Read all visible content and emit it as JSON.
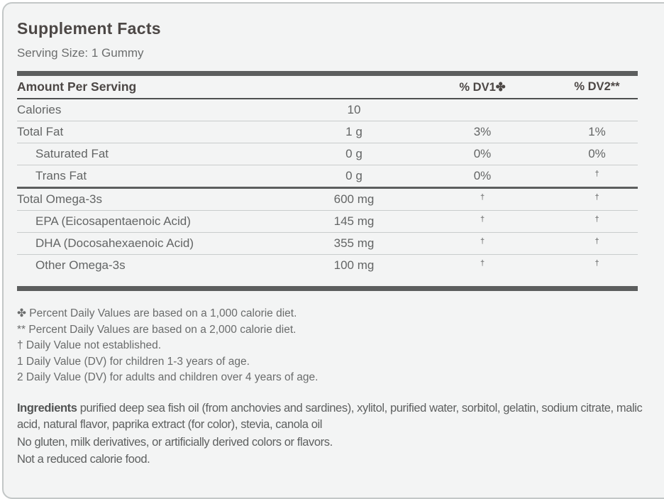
{
  "label": {
    "title": "Supplement Facts",
    "serving_size": "Serving Size: 1 Gummy"
  },
  "table": {
    "headers": {
      "amount_per_serving": "Amount Per Serving",
      "dv1": "% DV1✤",
      "dv2": "% DV2**"
    },
    "rows": [
      {
        "name": "Calories",
        "amount": "10",
        "dv1": "",
        "dv2": "",
        "indent": false,
        "sep_after": "thin"
      },
      {
        "name": "Total Fat",
        "amount": "1 g",
        "dv1": "3%",
        "dv2": "1%",
        "indent": false,
        "sep_after": "thin"
      },
      {
        "name": "Saturated Fat",
        "amount": "0 g",
        "dv1": "0%",
        "dv2": "0%",
        "indent": true,
        "sep_after": "thin"
      },
      {
        "name": "Trans Fat",
        "amount": "0 g",
        "dv1": "0%",
        "dv2": "†",
        "indent": true,
        "sep_after": "medium"
      },
      {
        "name": "Total Omega-3s",
        "amount": "600 mg",
        "dv1": "†",
        "dv2": "†",
        "indent": false,
        "sep_after": "thin"
      },
      {
        "name": "EPA (Eicosapentaenoic Acid)",
        "amount": "145 mg",
        "dv1": "†",
        "dv2": "†",
        "indent": true,
        "sep_after": "thin"
      },
      {
        "name": "DHA (Docosahexaenoic Acid)",
        "amount": "355 mg",
        "dv1": "†",
        "dv2": "†",
        "indent": true,
        "sep_after": "thin"
      },
      {
        "name": "Other Omega-3s",
        "amount": "100 mg",
        "dv1": "†",
        "dv2": "†",
        "indent": true,
        "sep_after": "none"
      }
    ]
  },
  "footnotes": [
    "✤ Percent Daily Values are based on a 1,000 calorie diet.",
    "** Percent Daily Values are based on a 2,000 calorie diet.",
    "† Daily Value not established.",
    "1 Daily Value (DV) for children 1-3 years of age.",
    "2 Daily Value (DV) for adults and children over 4 years of age."
  ],
  "ingredients": {
    "label": "Ingredients",
    "text": " purified deep sea fish oil (from anchovies and sardines), xylitol, purified water, sorbitol, gelatin, sodium citrate, malic acid, natural flavor, paprika extract (for color), stevia, canola oil"
  },
  "claims": [
    "No gluten, milk derivatives, or artificially derived colors or flavors.",
    "Not a reduced calorie food."
  ],
  "colors": {
    "background": "#f3f4f4",
    "bar_dark": "#5c5e5e",
    "hairline": "#c9cccc",
    "heading_text": "#4c4745",
    "body_text": "#636565"
  }
}
